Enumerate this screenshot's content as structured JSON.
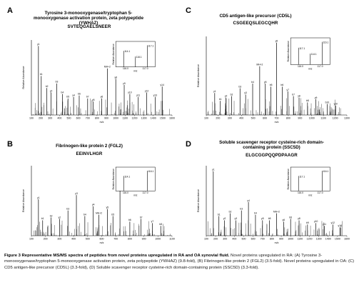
{
  "panels": [
    {
      "id": "A",
      "letter": "A",
      "title": "Tyrosine 3-monooxygenase/tryptophan 5-monooxygenase activation protein, zeta polypeptide (YWHAZ)",
      "sequence": "SVTEQGAELSNEER",
      "ylabel": "Relative Abundance",
      "xlabel": "m/z",
      "xticks": [
        "100",
        "200",
        "300",
        "400",
        "500",
        "600",
        "700",
        "800",
        "900",
        "1000",
        "1100",
        "1200",
        "1300",
        "1400",
        "1500",
        "1600"
      ],
      "inset": {
        "ylabel": "Relative Abundance",
        "xlabel": "m/z",
        "ticks": [
          "116.0",
          "117.0"
        ],
        "labels": [
          "117.1",
          "114.1",
          "116.1"
        ]
      },
      "peaks": [
        {
          "label": "y1",
          "x": 0.05,
          "h": 0.92
        },
        {
          "label": "b1",
          "x": 0.07,
          "h": 0.52
        },
        {
          "label": "b2",
          "x": 0.11,
          "h": 0.36
        },
        {
          "label": "y2",
          "x": 0.14,
          "h": 0.3
        },
        {
          "label": "b3",
          "x": 0.18,
          "h": 0.42
        },
        {
          "label": "b4",
          "x": 0.22,
          "h": 0.28
        },
        {
          "label": "b5",
          "x": 0.26,
          "h": 0.22
        },
        {
          "label": "y4",
          "x": 0.3,
          "h": 0.24
        },
        {
          "label": "b6",
          "x": 0.34,
          "h": 0.26
        },
        {
          "label": "b7",
          "x": 0.4,
          "h": 0.22
        },
        {
          "label": "y5",
          "x": 0.44,
          "h": 0.18
        },
        {
          "label": "y6",
          "x": 0.5,
          "h": 0.22
        },
        {
          "label": "MH+2",
          "x": 0.54,
          "h": 0.62
        },
        {
          "label": "y8",
          "x": 0.6,
          "h": 0.48
        },
        {
          "label": "y9",
          "x": 0.66,
          "h": 0.4
        },
        {
          "label": "y10",
          "x": 0.7,
          "h": 0.28
        },
        {
          "label": "y11",
          "x": 0.76,
          "h": 0.24
        },
        {
          "label": "y12",
          "x": 0.82,
          "h": 0.3
        },
        {
          "label": "y13",
          "x": 0.88,
          "h": 0.24
        },
        {
          "label": "y14",
          "x": 0.93,
          "h": 0.38
        }
      ]
    },
    {
      "id": "B",
      "letter": "B",
      "title": "Fibrinogen-like protein 2 (FGL2)",
      "sequence": "EEINVLHGR",
      "ylabel": "Relative Abundance",
      "xlabel": "m/z",
      "xticks": [
        "100",
        "200",
        "300",
        "400",
        "500",
        "600",
        "700",
        "800",
        "900",
        "1000",
        "1100"
      ],
      "inset": {
        "ylabel": "Relative Abundance",
        "xlabel": "m/z",
        "ticks": [
          "116.0",
          "117.0"
        ],
        "labels": [
          "116.1",
          "114.1"
        ]
      },
      "peaks": [
        {
          "label": "y1",
          "x": 0.05,
          "h": 0.52
        },
        {
          "label": "b1",
          "x": 0.08,
          "h": 0.22
        },
        {
          "label": "b2",
          "x": 0.14,
          "h": 0.26
        },
        {
          "label": "y2",
          "x": 0.2,
          "h": 0.24
        },
        {
          "label": "b3",
          "x": 0.26,
          "h": 0.36
        },
        {
          "label": "y3",
          "x": 0.32,
          "h": 0.58
        },
        {
          "label": "b4",
          "x": 0.38,
          "h": 0.28
        },
        {
          "label": "y4",
          "x": 0.44,
          "h": 0.42
        },
        {
          "label": "MH+2",
          "x": 0.48,
          "h": 0.3
        },
        {
          "label": "y5",
          "x": 0.54,
          "h": 0.38
        },
        {
          "label": "b5",
          "x": 0.58,
          "h": 0.28
        },
        {
          "label": "y6",
          "x": 0.63,
          "h": 0.92
        },
        {
          "label": "b6",
          "x": 0.7,
          "h": 0.2
        },
        {
          "label": "b7",
          "x": 0.78,
          "h": 0.24
        },
        {
          "label": "y7",
          "x": 0.86,
          "h": 0.18
        },
        {
          "label": "b8",
          "x": 0.92,
          "h": 0.14
        }
      ]
    },
    {
      "id": "C",
      "letter": "C",
      "title": "CD5 antigen-like precursor (CD5L)",
      "sequence": "CSGEEQSLEGCQHR",
      "ylabel": "Relative Abundance",
      "xlabel": "m/z",
      "xticks": [
        "100",
        "200",
        "300",
        "400",
        "500",
        "600",
        "700",
        "800",
        "900",
        "1000",
        "1100",
        "1200",
        "1300"
      ],
      "inset": {
        "ylabel": "Relative Abundance",
        "xlabel": "m/z",
        "ticks": [
          "116.0",
          "117.0"
        ],
        "labels": [
          "116.1",
          "117.1",
          "114.1"
        ]
      },
      "peaks": [
        {
          "label": "y1",
          "x": 0.06,
          "h": 0.28
        },
        {
          "label": "b1",
          "x": 0.1,
          "h": 0.18
        },
        {
          "label": "y2",
          "x": 0.14,
          "h": 0.22
        },
        {
          "label": "b2",
          "x": 0.18,
          "h": 0.24
        },
        {
          "label": "b3",
          "x": 0.24,
          "h": 0.34
        },
        {
          "label": "y3",
          "x": 0.28,
          "h": 0.26
        },
        {
          "label": "b4",
          "x": 0.33,
          "h": 0.4
        },
        {
          "label": "MH+2",
          "x": 0.38,
          "h": 0.62
        },
        {
          "label": "y5",
          "x": 0.42,
          "h": 0.4
        },
        {
          "label": "b5",
          "x": 0.46,
          "h": 0.36
        },
        {
          "label": "y6",
          "x": 0.5,
          "h": 0.92
        },
        {
          "label": "b6",
          "x": 0.54,
          "h": 0.36
        },
        {
          "label": "y7",
          "x": 0.58,
          "h": 0.3
        },
        {
          "label": "b7",
          "x": 0.62,
          "h": 0.24
        },
        {
          "label": "y8",
          "x": 0.66,
          "h": 0.22
        },
        {
          "label": "b8",
          "x": 0.72,
          "h": 0.16
        },
        {
          "label": "y9",
          "x": 0.78,
          "h": 0.2
        },
        {
          "label": "b10",
          "x": 0.86,
          "h": 0.14
        },
        {
          "label": "y10",
          "x": 0.92,
          "h": 0.12
        }
      ]
    },
    {
      "id": "D",
      "letter": "D",
      "title": "Soluble scavenger receptor cysteine-rich domain-containing protein (SSC5D)",
      "sequence": "ELGCGGPQQPDPAAGR",
      "ylabel": "Relative Abundance",
      "xlabel": "m/z",
      "xticks": [
        "100",
        "200",
        "300",
        "400",
        "500",
        "600",
        "700",
        "800",
        "900",
        "1000",
        "1100",
        "1200",
        "1300",
        "1400",
        "1500",
        "1600"
      ],
      "inset": {
        "ylabel": "Relative Abundance",
        "xlabel": "m/z",
        "ticks": [
          "116.0",
          "117.0"
        ],
        "labels": [
          "116.1",
          "117.1"
        ]
      },
      "peaks": [
        {
          "label": "y1",
          "x": 0.05,
          "h": 0.92
        },
        {
          "label": "b1",
          "x": 0.09,
          "h": 0.28
        },
        {
          "label": "y2",
          "x": 0.13,
          "h": 0.22
        },
        {
          "label": "b2",
          "x": 0.17,
          "h": 0.32
        },
        {
          "label": "y3",
          "x": 0.21,
          "h": 0.22
        },
        {
          "label": "b3",
          "x": 0.25,
          "h": 0.36
        },
        {
          "label": "y4",
          "x": 0.3,
          "h": 0.48
        },
        {
          "label": "b4",
          "x": 0.35,
          "h": 0.3
        },
        {
          "label": "y5",
          "x": 0.4,
          "h": 0.22
        },
        {
          "label": "b5",
          "x": 0.45,
          "h": 0.22
        },
        {
          "label": "MH+2",
          "x": 0.5,
          "h": 0.32
        },
        {
          "label": "y6",
          "x": 0.55,
          "h": 0.2
        },
        {
          "label": "b6",
          "x": 0.6,
          "h": 0.24
        },
        {
          "label": "y8",
          "x": 0.66,
          "h": 0.22
        },
        {
          "label": "b9",
          "x": 0.72,
          "h": 0.16
        },
        {
          "label": "y10",
          "x": 0.78,
          "h": 0.18
        },
        {
          "label": "y11",
          "x": 0.84,
          "h": 0.14
        },
        {
          "label": "y12",
          "x": 0.9,
          "h": 0.16
        },
        {
          "label": "y14",
          "x": 0.95,
          "h": 0.12
        }
      ]
    }
  ],
  "caption": {
    "lead": "Figure 3 Representative MS/MS spectra of peptides from novel proteins upregulated in RA and OA synovial fluid.",
    "body": " Novel proteins upregulated in RA: (A) Tyrosine 3-monooxygenase/tryptophan 5-monooxygenase activation protein, zeta polypeptide (YWHAZ) (9.8-fold), (B) Fibrinogen-like protein 2 (FGL2) (3.5-fold). Novel proteins upregulated in OA: (C) CD5 antigen-like precursor (CD5L) (3.3-fold), (D) Soluble scavenger receptor cysteine-rich domain-containing protein (SSC5D) (3.3-fold)."
  }
}
